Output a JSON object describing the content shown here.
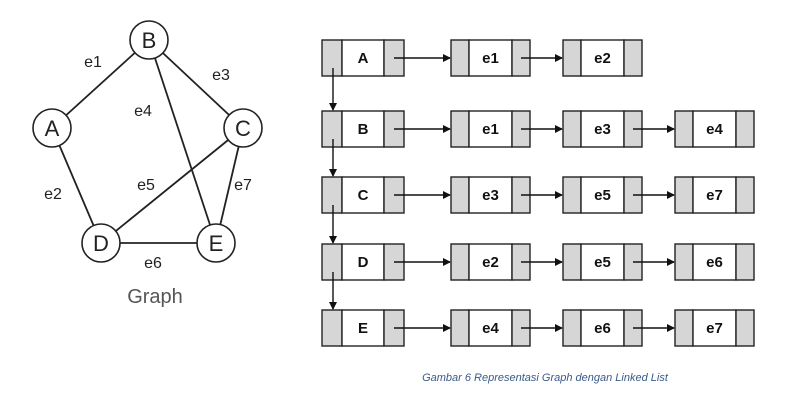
{
  "graph": {
    "title": "Graph",
    "nodes": [
      {
        "id": "A",
        "label": "A"
      },
      {
        "id": "B",
        "label": "B"
      },
      {
        "id": "C",
        "label": "C"
      },
      {
        "id": "D",
        "label": "D"
      },
      {
        "id": "E",
        "label": "E"
      }
    ],
    "edges": [
      {
        "id": "e1",
        "label": "e1",
        "from": "A",
        "to": "B"
      },
      {
        "id": "e2",
        "label": "e2",
        "from": "A",
        "to": "D"
      },
      {
        "id": "e3",
        "label": "e3",
        "from": "B",
        "to": "C"
      },
      {
        "id": "e4",
        "label": "e4",
        "from": "B",
        "to": "E"
      },
      {
        "id": "e5",
        "label": "e5",
        "from": "C",
        "to": "D"
      },
      {
        "id": "e6",
        "label": "e6",
        "from": "D",
        "to": "E"
      },
      {
        "id": "e7",
        "label": "e7",
        "from": "C",
        "to": "E"
      }
    ]
  },
  "linked_list": {
    "rows": [
      {
        "vertex": "A",
        "edges": [
          "e1",
          "e2"
        ]
      },
      {
        "vertex": "B",
        "edges": [
          "e1",
          "e3",
          "e4"
        ]
      },
      {
        "vertex": "C",
        "edges": [
          "e3",
          "e5",
          "e7"
        ]
      },
      {
        "vertex": "D",
        "edges": [
          "e2",
          "e5",
          "e6"
        ]
      },
      {
        "vertex": "E",
        "edges": [
          "e4",
          "e6",
          "e7"
        ]
      }
    ]
  },
  "caption": "Gambar 6 Representasi Graph dengan  Linked List"
}
